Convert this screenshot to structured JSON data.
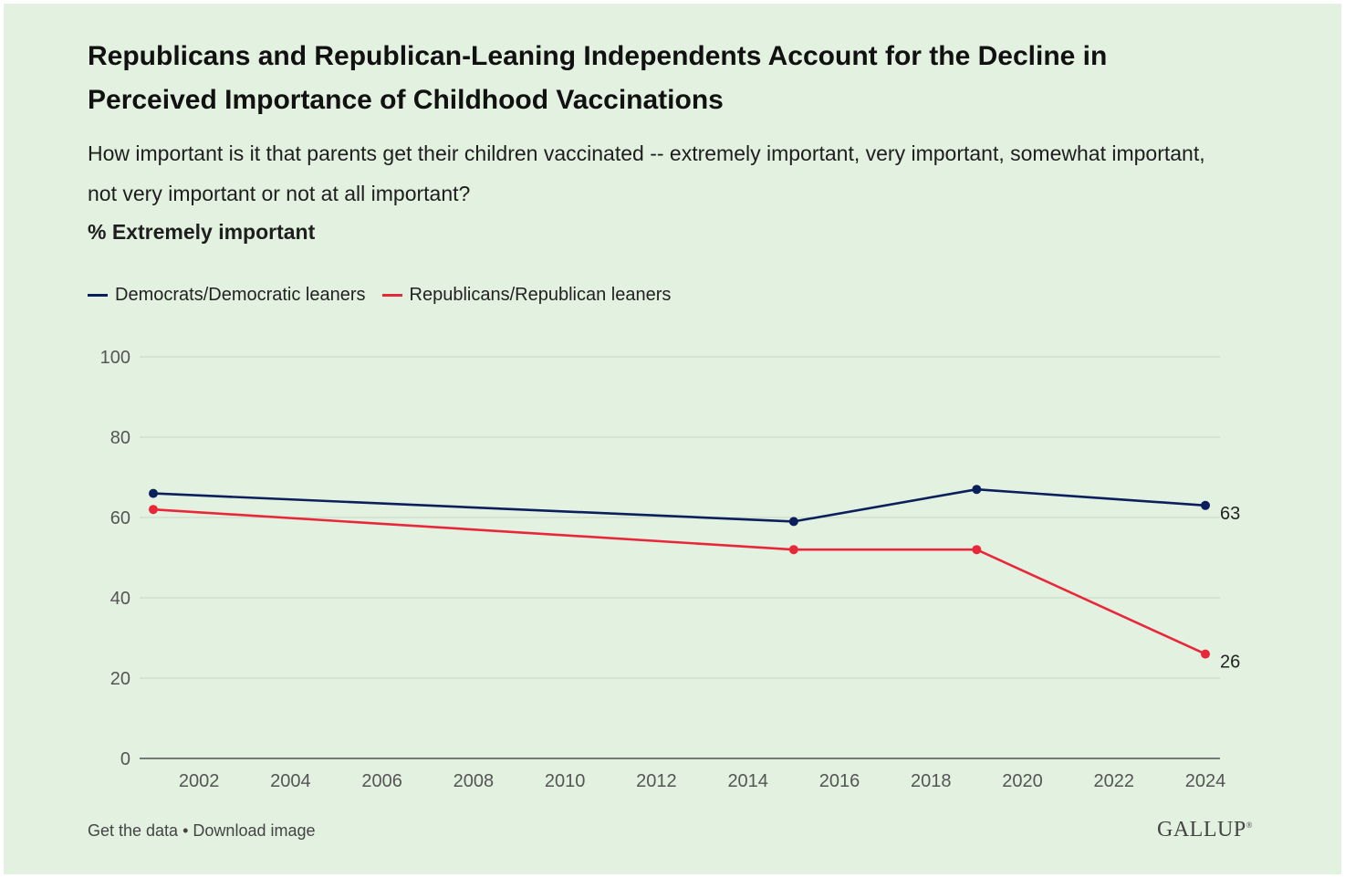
{
  "chart_data": {
    "type": "line",
    "title": "Republicans and Republican-Leaning Independents Account for the Decline in Perceived Importance of Childhood Vaccinations",
    "subtitle": "How important is it that parents get their children vaccinated -- extremely important, very important, somewhat important, not very important or not at all important?",
    "measure_label": "% Extremely important",
    "xlabel": "",
    "ylabel": "",
    "ylim": [
      0,
      100
    ],
    "yticks": [
      0,
      20,
      40,
      60,
      80,
      100
    ],
    "xlim": [
      2001,
      2024
    ],
    "xticks": [
      2002,
      2004,
      2006,
      2008,
      2010,
      2012,
      2014,
      2016,
      2018,
      2020,
      2022,
      2024
    ],
    "grid": true,
    "legend_position": "top-left",
    "series": [
      {
        "name": "Democrats/Democratic leaners",
        "color": "#0b1f5c",
        "points": [
          [
            2001,
            66
          ],
          [
            2015,
            59
          ],
          [
            2019,
            67
          ],
          [
            2024,
            63
          ]
        ],
        "end_label": "63"
      },
      {
        "name": "Republicans/Republican leaners",
        "color": "#e8283a",
        "points": [
          [
            2001,
            62
          ],
          [
            2015,
            52
          ],
          [
            2019,
            52
          ],
          [
            2024,
            26
          ]
        ],
        "end_label": "26"
      }
    ]
  },
  "footer": {
    "get_data": "Get the data",
    "separator": "•",
    "download": "Download image"
  },
  "brand": {
    "logo_text": "GALLUP",
    "logo_mark": "®"
  }
}
